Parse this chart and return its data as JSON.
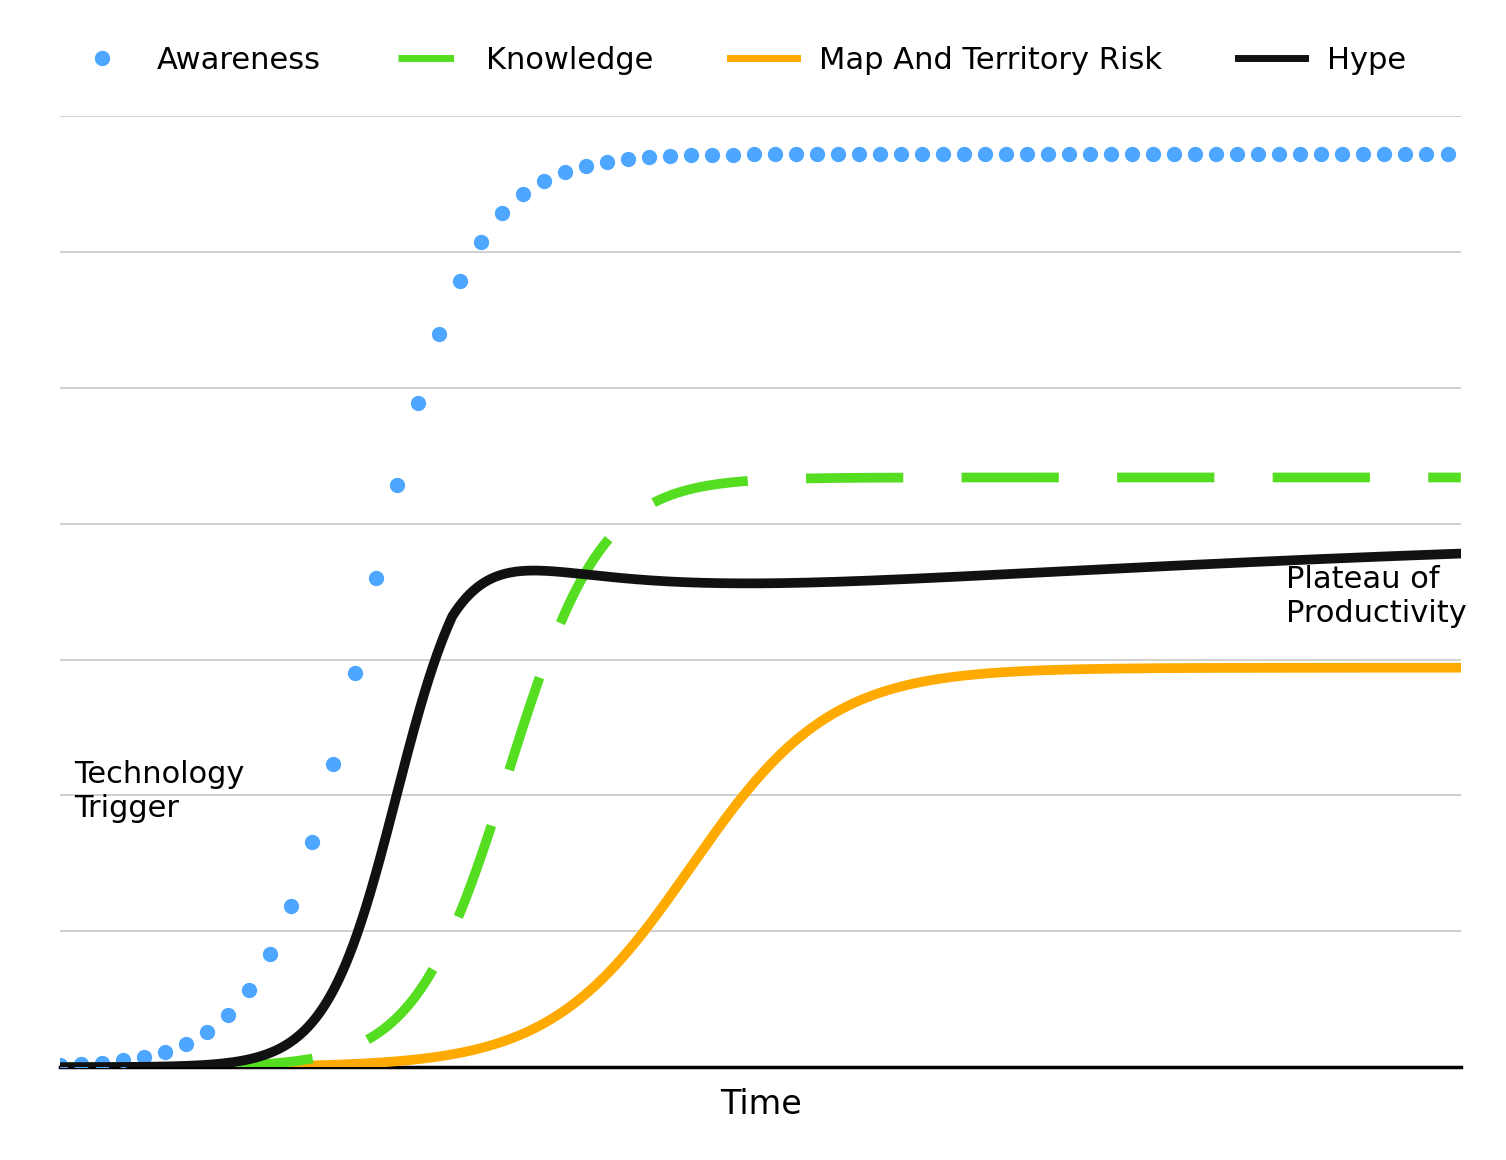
{
  "xlabel": "Time",
  "bg_color": "#ffffff",
  "grid_color": "#c8c8c8",
  "awareness_color": "#4da6ff",
  "knowledge_color": "#55dd22",
  "mapterritory_color": "#ffaa00",
  "hype_color": "#111111",
  "awareness_label": "Awareness",
  "knowledge_label": "Knowledge",
  "mapterritory_label": "Map And Territory Risk",
  "hype_label": "Hype",
  "annotation_trigger": "Technology\nTrigger",
  "annotation_plateau": "Plateau of\nProductivity",
  "ylim": [
    0,
    1.0
  ],
  "xlim": [
    0,
    10
  ],
  "n_grid_lines": 7
}
